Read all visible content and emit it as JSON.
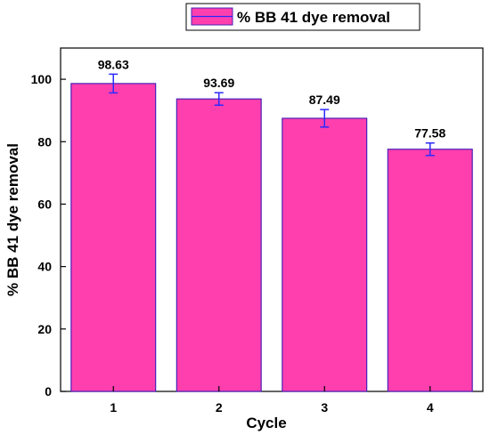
{
  "chart_data": {
    "type": "bar",
    "categories": [
      "1",
      "2",
      "3",
      "4"
    ],
    "series": [
      {
        "name": "% BB 41 dye removal",
        "values": [
          98.63,
          93.69,
          87.49,
          77.58
        ],
        "errors": [
          3.0,
          2.0,
          2.8,
          2.0
        ],
        "data_labels": [
          "98.63",
          "93.69",
          "87.49",
          "77.58"
        ]
      }
    ],
    "xlabel": "Cycle",
    "ylabel": "% BB 41 dye removal",
    "ylim": [
      0,
      110
    ],
    "yticks": [
      0,
      20,
      40,
      60,
      80,
      100
    ],
    "grid": false,
    "legend_position": "top-right",
    "colors": {
      "bar_fill": "#ff3fae",
      "bar_edge": "#4a1fb8",
      "error_bar": "#2a2aff"
    }
  }
}
